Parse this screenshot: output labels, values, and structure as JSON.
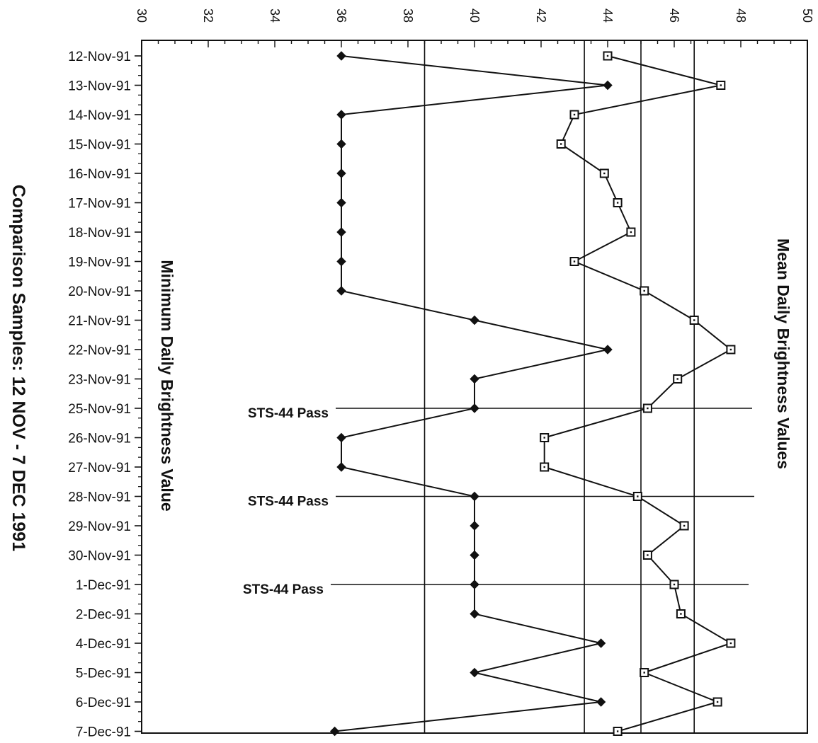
{
  "chart_data": {
    "type": "line",
    "title": "Comparison Samples:  12 NOV - 7 DEC 1991",
    "xlim": [
      30,
      50
    ],
    "x_ticks": [
      30,
      32,
      34,
      36,
      38,
      40,
      42,
      44,
      46,
      48,
      50
    ],
    "categories": [
      "12-Nov-91",
      "13-Nov-91",
      "14-Nov-91",
      "15-Nov-91",
      "16-Nov-91",
      "17-Nov-91",
      "18-Nov-91",
      "19-Nov-91",
      "20-Nov-91",
      "21-Nov-91",
      "22-Nov-91",
      "23-Nov-91",
      "25-Nov-91",
      "26-Nov-91",
      "27-Nov-91",
      "28-Nov-91",
      "29-Nov-91",
      "30-Nov-91",
      "1-Dec-91",
      "2-Dec-91",
      "4-Dec-91",
      "5-Dec-91",
      "6-Dec-91",
      "7-Dec-91"
    ],
    "series": [
      {
        "name": "Minimum Daily Brightness Value",
        "marker": "filled-diamond",
        "color": "#111111",
        "values": [
          36,
          44,
          36,
          36,
          36,
          36,
          36,
          36,
          36,
          40,
          44,
          40,
          40,
          36,
          36,
          40,
          40,
          40,
          40,
          40,
          43.8,
          40,
          43.8,
          35.8
        ]
      },
      {
        "name": "Mean Daily Brightness Values",
        "marker": "open-square",
        "color": "#111111",
        "values": [
          44,
          47.4,
          43,
          42.6,
          43.9,
          44.3,
          44.7,
          43,
          45.1,
          46.6,
          47.7,
          46.1,
          45.2,
          42.1,
          42.1,
          44.9,
          46.3,
          45.2,
          46,
          46.2,
          47.7,
          45.1,
          47.3,
          44.3
        ]
      }
    ],
    "reference_lines": [
      38.5,
      43.3,
      45,
      46.6
    ],
    "annotations": [
      {
        "label": "STS-44  Pass",
        "at": "25-Nov-91"
      },
      {
        "label": "STS-44  Pass",
        "at": "28-Nov-91"
      },
      {
        "label": "STS-44  Pass",
        "at": "1-Dec-91"
      }
    ],
    "grid": false
  }
}
